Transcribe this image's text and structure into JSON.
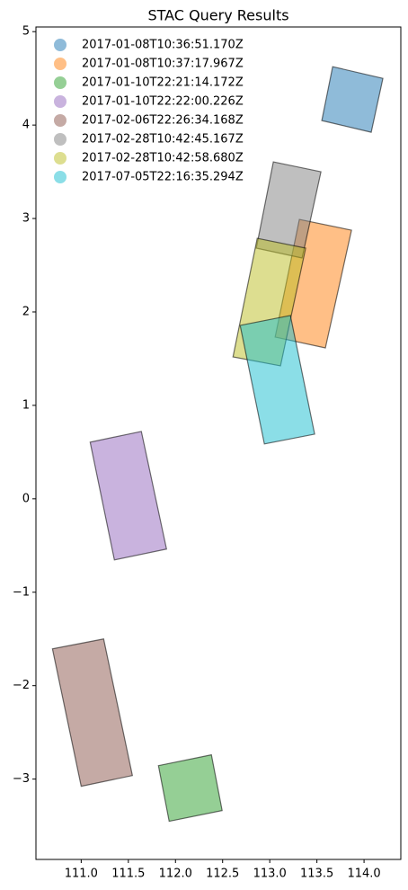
{
  "chart_data": {
    "type": "polygon",
    "title": "STAC Query Results",
    "legend": "upper left",
    "xlim": [
      110.52,
      114.39
    ],
    "ylim": [
      -3.86,
      5.05
    ],
    "xticks": [
      {
        "value": 111,
        "label": "111.0"
      },
      {
        "value": 111.5,
        "label": "111.5"
      },
      {
        "value": 112,
        "label": "112.0"
      },
      {
        "value": 112.5,
        "label": "112.5"
      },
      {
        "value": 113,
        "label": "113.0"
      },
      {
        "value": 113.5,
        "label": "113.5"
      },
      {
        "value": 114,
        "label": "114.0"
      }
    ],
    "yticks": [
      {
        "value": -3,
        "label": "−3"
      },
      {
        "value": -2,
        "label": "−2"
      },
      {
        "value": -1,
        "label": "−1"
      },
      0,
      1,
      2,
      3,
      4,
      5
    ],
    "series": [
      {
        "name": "2017-01-08T10:36:51.170Z",
        "color": "#1f77b4",
        "x": [
          113.667,
          114.2,
          114.076,
          113.552
        ],
        "y": [
          4.625,
          4.5,
          3.923,
          4.048
        ]
      },
      {
        "name": "2017-01-08T10:37:17.967Z",
        "color": "#ff7f0e",
        "x": [
          113.314,
          113.867,
          113.59,
          113.057
        ],
        "y": [
          2.99,
          2.875,
          1.615,
          1.731
        ]
      },
      {
        "name": "2017-01-10T22:21:14.172Z",
        "color": "#2ca02c",
        "x": [
          111.819,
          112.381,
          112.495,
          111.933
        ],
        "y": [
          -2.856,
          -2.74,
          -3.337,
          -3.452
        ]
      },
      {
        "name": "2017-01-10T22:22:00.226Z",
        "color": "#9467bd",
        "x": [
          111.095,
          111.638,
          111.905,
          111.352
        ],
        "y": [
          0.606,
          0.721,
          -0.538,
          -0.654
        ]
      },
      {
        "name": "2017-02-06T22:26:34.168Z",
        "color": "#8c564b",
        "x": [
          110.695,
          111.238,
          111.543,
          111.0
        ],
        "y": [
          -1.606,
          -1.5,
          -2.962,
          -3.077
        ]
      },
      {
        "name": "2017-02-28T10:42:45.167Z",
        "color": "#7f7f7f",
        "x": [
          113.038,
          113.543,
          113.343,
          112.857
        ],
        "y": [
          3.606,
          3.5,
          2.577,
          2.683
        ]
      },
      {
        "name": "2017-02-28T10:42:58.680Z",
        "color": "#bcbd22",
        "x": [
          112.867,
          113.381,
          113.114,
          112.61
        ],
        "y": [
          2.788,
          2.683,
          1.423,
          1.519
        ]
      },
      {
        "name": "2017-07-05T22:16:35.294Z",
        "color": "#17becf",
        "x": [
          112.686,
          113.219,
          113.476,
          112.943
        ],
        "y": [
          1.856,
          1.962,
          0.692,
          0.587
        ]
      }
    ]
  }
}
